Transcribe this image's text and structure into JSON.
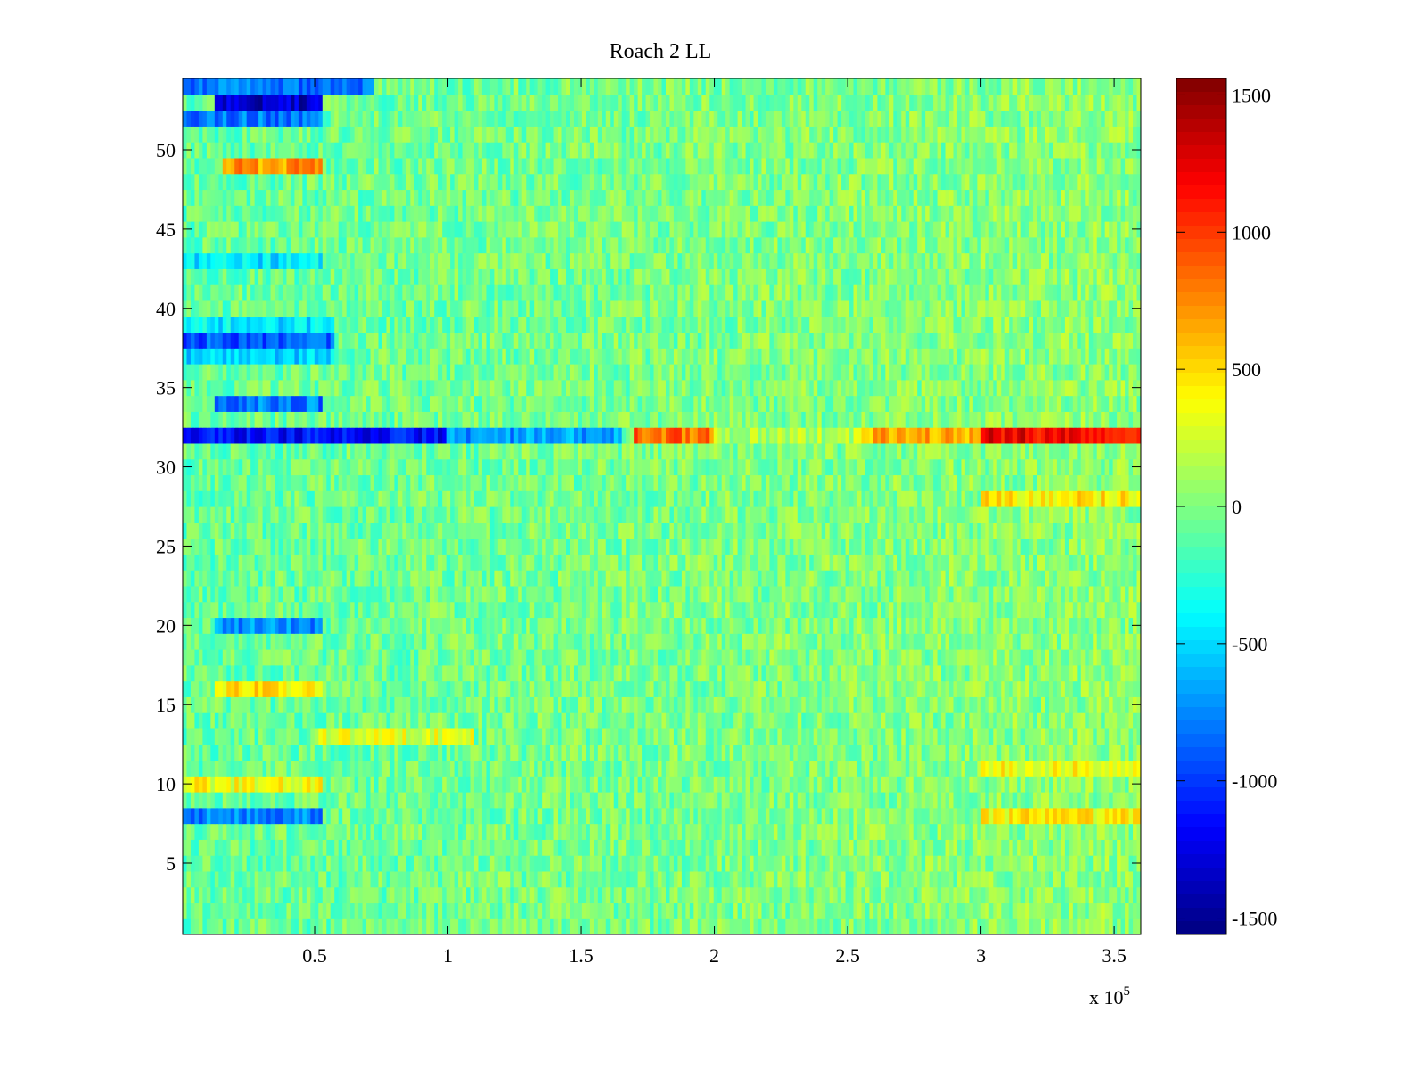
{
  "chart_data": {
    "type": "heatmap",
    "title": "Roach 2 LL",
    "xlabel": "",
    "ylabel": "",
    "x_range": [
      500,
      360000
    ],
    "y_range": [
      0.5,
      54.5
    ],
    "rows": 54,
    "x_scale_label": "x 10",
    "x_scale_exponent": "5",
    "x_ticks": [
      {
        "value": 50000,
        "label": "0.5"
      },
      {
        "value": 100000,
        "label": "1"
      },
      {
        "value": 150000,
        "label": "1.5"
      },
      {
        "value": 200000,
        "label": "2"
      },
      {
        "value": 250000,
        "label": "2.5"
      },
      {
        "value": 300000,
        "label": "3"
      },
      {
        "value": 350000,
        "label": "3.5"
      }
    ],
    "y_ticks": [
      {
        "value": 5,
        "label": "5"
      },
      {
        "value": 10,
        "label": "10"
      },
      {
        "value": 15,
        "label": "15"
      },
      {
        "value": 20,
        "label": "20"
      },
      {
        "value": 25,
        "label": "25"
      },
      {
        "value": 30,
        "label": "30"
      },
      {
        "value": 35,
        "label": "35"
      },
      {
        "value": 40,
        "label": "40"
      },
      {
        "value": 45,
        "label": "45"
      },
      {
        "value": 50,
        "label": "50"
      }
    ],
    "colorbar": {
      "colormap": "jet",
      "range": [
        -1560,
        1560
      ],
      "ticks": [
        {
          "value": 1500,
          "label": "1500"
        },
        {
          "value": 1000,
          "label": "1000"
        },
        {
          "value": 500,
          "label": "500"
        },
        {
          "value": 0,
          "label": "0"
        },
        {
          "value": -500,
          "label": "-500"
        },
        {
          "value": -1000,
          "label": "-1000"
        },
        {
          "value": -1500,
          "label": "-1500"
        }
      ]
    },
    "background_level": 0,
    "features": [
      {
        "row": 32,
        "x_start": 500,
        "x_end": 100000,
        "value": -1150
      },
      {
        "row": 32,
        "x_start": 100000,
        "x_end": 165000,
        "value": -700
      },
      {
        "row": 32,
        "x_start": 170000,
        "x_end": 200000,
        "value": 850
      },
      {
        "row": 32,
        "x_start": 200000,
        "x_end": 255000,
        "value": 150
      },
      {
        "row": 32,
        "x_start": 255000,
        "x_end": 300000,
        "value": 650
      },
      {
        "row": 32,
        "x_start": 300000,
        "x_end": 360000,
        "value": 1200
      },
      {
        "row": 53,
        "x_start": 12000,
        "x_end": 53000,
        "value": -1350
      },
      {
        "row": 54,
        "x_start": 500,
        "x_end": 73000,
        "value": -800
      },
      {
        "row": 52,
        "x_start": 500,
        "x_end": 53000,
        "value": -800
      },
      {
        "row": 49,
        "x_start": 15000,
        "x_end": 53000,
        "value": 700
      },
      {
        "row": 38,
        "x_start": 500,
        "x_end": 57000,
        "value": -900
      },
      {
        "row": 37,
        "x_start": 500,
        "x_end": 57000,
        "value": -500
      },
      {
        "row": 39,
        "x_start": 500,
        "x_end": 57000,
        "value": -450
      },
      {
        "row": 34,
        "x_start": 12000,
        "x_end": 53000,
        "value": -800
      },
      {
        "row": 43,
        "x_start": 500,
        "x_end": 53000,
        "value": -450
      },
      {
        "row": 20,
        "x_start": 12000,
        "x_end": 53000,
        "value": -750
      },
      {
        "row": 16,
        "x_start": 12000,
        "x_end": 53000,
        "value": 450
      },
      {
        "row": 8,
        "x_start": 500,
        "x_end": 53000,
        "value": -750
      },
      {
        "row": 10,
        "x_start": 500,
        "x_end": 53000,
        "value": 350
      },
      {
        "row": 13,
        "x_start": 50000,
        "x_end": 110000,
        "value": 300
      },
      {
        "row": 28,
        "x_start": 300000,
        "x_end": 360000,
        "value": 450
      },
      {
        "row": 11,
        "x_start": 300000,
        "x_end": 360000,
        "value": 350
      },
      {
        "row": 8,
        "x_start": 300000,
        "x_end": 360000,
        "value": 400
      }
    ]
  }
}
